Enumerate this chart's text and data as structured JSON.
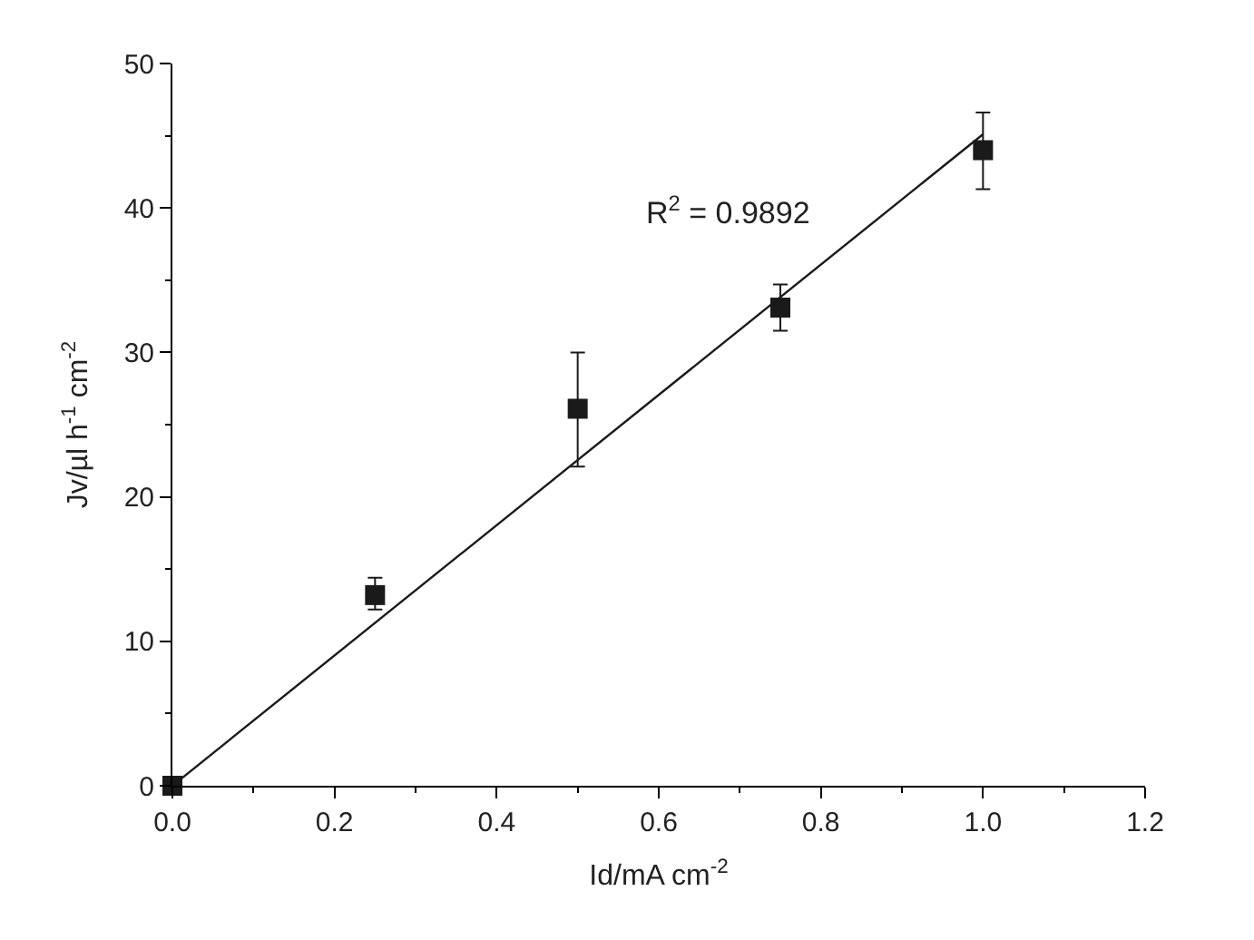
{
  "chart_data": {
    "type": "scatter",
    "xlabel": "Id/mA cm$^{-2}$",
    "ylabel": "Jv/µl h$^{-1}$ cm$^{-2}$",
    "x": [
      0.0,
      0.25,
      0.5,
      0.75,
      1.0
    ],
    "series": [
      {
        "color": "#1a1a1a",
        "marker": "square",
        "values": [
          0.0,
          13.2,
          26.1,
          33.1,
          44.0
        ],
        "errors": [
          null,
          [
            12.2,
            14.4
          ],
          [
            22.1,
            30.0
          ],
          [
            31.5,
            34.7
          ],
          [
            41.3,
            46.6
          ]
        ]
      },
      {
        "type": "line",
        "color": "#1a1a1a",
        "x": [
          0.0,
          1.0
        ],
        "values": [
          0.0,
          45.1
        ]
      }
    ],
    "annotations": [
      "R$^{2}$ = 0.9892"
    ],
    "xlim": [
      0.0,
      1.2
    ],
    "xticks": [
      {
        "value": 0.0,
        "label": "0.0"
      },
      0.2,
      0.4,
      0.6,
      0.8,
      {
        "value": 1.0,
        "label": "1.0"
      },
      1.2
    ],
    "ylim": [
      0,
      50
    ],
    "yticks": [
      0,
      10,
      20,
      30,
      40,
      50
    ],
    "grid": false,
    "legend": false
  }
}
